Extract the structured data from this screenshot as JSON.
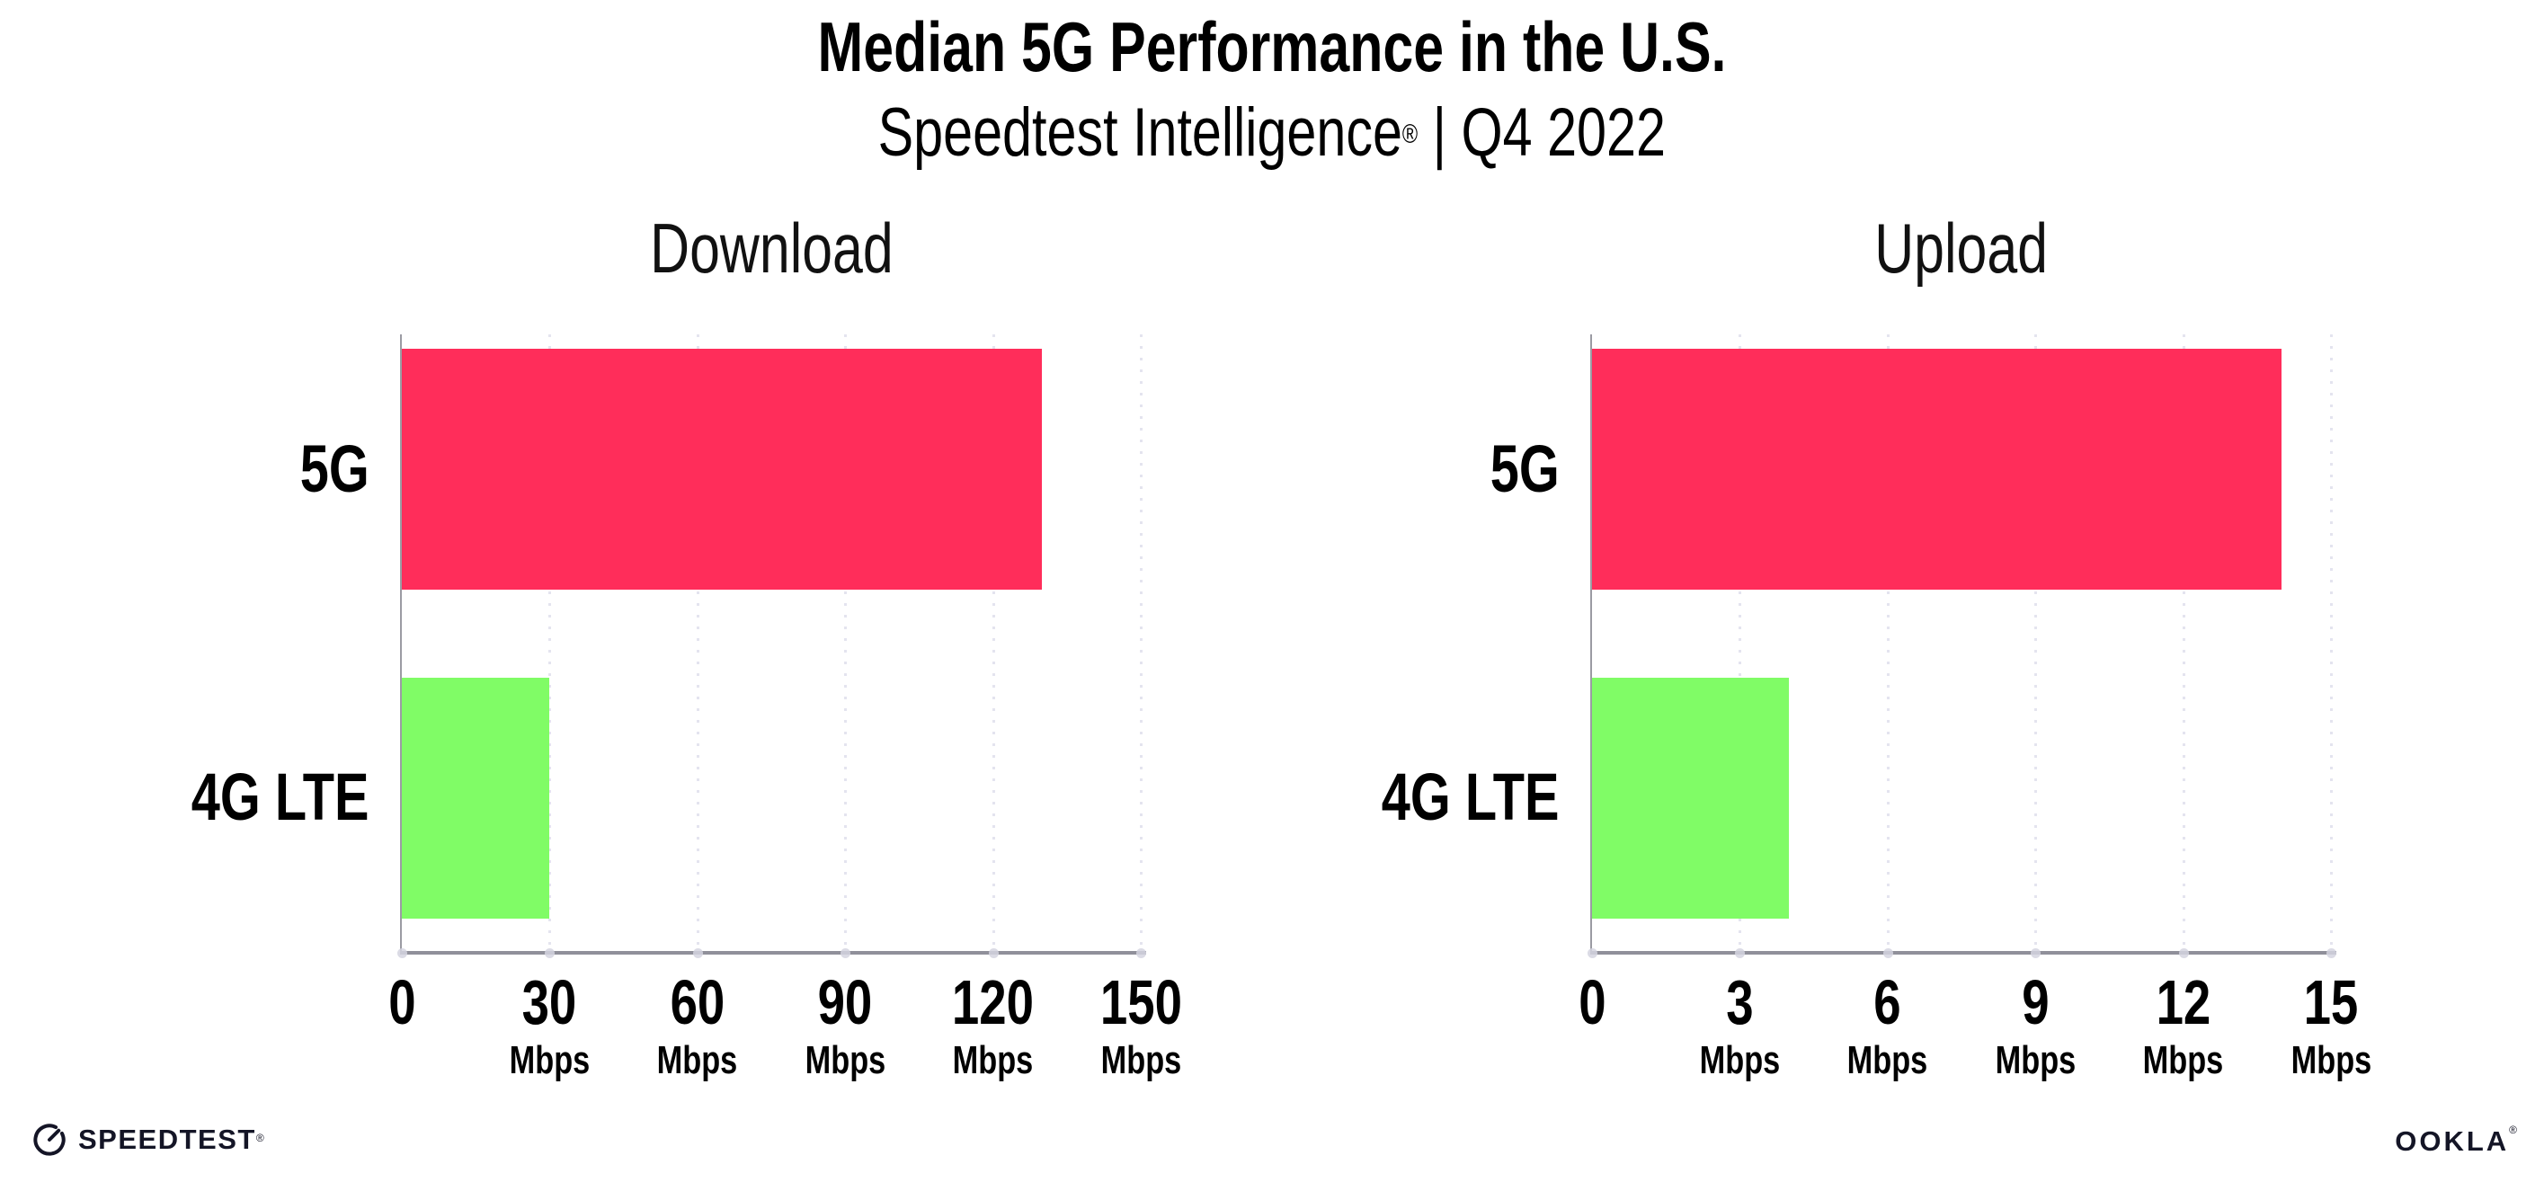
{
  "header": {
    "title": "Median 5G Performance in the U.S.",
    "subtitle": {
      "brand": "Speedtest Intelligence",
      "registered": "®",
      "rest": " | Q4 2022"
    }
  },
  "chart_data": [
    {
      "type": "bar",
      "orientation": "horizontal",
      "title": "Download",
      "categories": [
        "5G",
        "4G LTE"
      ],
      "values": [
        130,
        30
      ],
      "unit": "Mbps",
      "xlim": [
        0,
        150
      ],
      "xticks": [
        0,
        30,
        60,
        90,
        120,
        150
      ],
      "ticks": [
        {
          "label": "0",
          "unit": ""
        },
        {
          "label": "30",
          "unit": "Mbps"
        },
        {
          "label": "60",
          "unit": "Mbps"
        },
        {
          "label": "90",
          "unit": "Mbps"
        },
        {
          "label": "120",
          "unit": "Mbps"
        },
        {
          "label": "150",
          "unit": "Mbps"
        }
      ],
      "bar_colors": [
        "#FF2D5A",
        "#80FC66"
      ],
      "grid": "dotted-vertical",
      "legend": "none"
    },
    {
      "type": "bar",
      "orientation": "horizontal",
      "title": "Upload",
      "categories": [
        "5G",
        "4G LTE"
      ],
      "values": [
        14,
        4
      ],
      "unit": "Mbps",
      "xlim": [
        0,
        15
      ],
      "xticks": [
        0,
        3,
        6,
        9,
        12,
        15
      ],
      "ticks": [
        {
          "label": "0",
          "unit": ""
        },
        {
          "label": "3",
          "unit": "Mbps"
        },
        {
          "label": "6",
          "unit": "Mbps"
        },
        {
          "label": "9",
          "unit": "Mbps"
        },
        {
          "label": "12",
          "unit": "Mbps"
        },
        {
          "label": "15",
          "unit": "Mbps"
        }
      ],
      "bar_colors": [
        "#FF2D5A",
        "#80FC66"
      ],
      "grid": "dotted-vertical",
      "legend": "none"
    }
  ],
  "footer": {
    "speedtest": {
      "label": "SPEEDTEST",
      "mark": "®"
    },
    "ookla": {
      "label": "OOKLA",
      "mark": "®"
    }
  },
  "colors": {
    "bar_5g": "#FF2D5A",
    "bar_4g_lte": "#80FC66",
    "gridline": "#E4E4EF",
    "axis_x": "#90909A",
    "axis_y": "#9B9BA3",
    "tick_dot": "#D5D5E1",
    "text": "#000000",
    "logo": "#141526"
  }
}
